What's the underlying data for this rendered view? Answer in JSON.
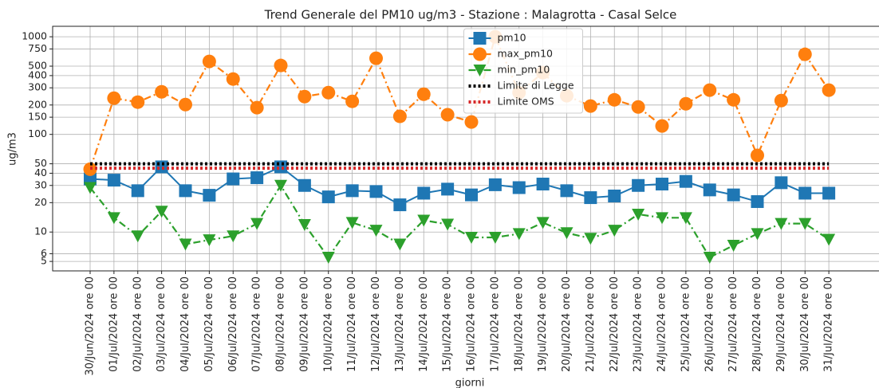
{
  "chart_data": {
    "type": "line",
    "title": "Trend Generale del PM10 ug/m3 - Stazione : Malagrotta - Casal Selce",
    "x_label": "giorni",
    "y_label": "ug/m3",
    "categories": [
      "30/Jun/2024 ore 00",
      "01/Jul/2024 ore 00",
      "02/Jul/2024 ore 00",
      "03/Jul/2024 ore 00",
      "04/Jul/2024 ore 00",
      "05/Jul/2024 ore 00",
      "06/Jul/2024 ore 00",
      "07/Jul/2024 ore 00",
      "08/Jul/2024 ore 00",
      "09/Jul/2024 ore 00",
      "10/Jul/2024 ore 00",
      "11/Jul/2024 ore 00",
      "12/Jul/2024 ore 00",
      "13/Jul/2024 ore 00",
      "14/Jul/2024 ore 00",
      "15/Jul/2024 ore 00",
      "16/Jul/2024 ore 00",
      "17/Jul/2024 ore 00",
      "18/Jul/2024 ore 00",
      "19/Jul/2024 ore 00",
      "20/Jul/2024 ore 00",
      "21/Jul/2024 ore 00",
      "22/Jul/2024 ore 00",
      "23/Jul/2024 ore 00",
      "24/Jul/2024 ore 00",
      "25/Jul/2024 ore 00",
      "26/Jul/2024 ore 00",
      "27/Jul/2024 ore 00",
      "28/Jul/2024 ore 00",
      "29/Jul/2024 ore 00",
      "30/Jul/2024 ore 00",
      "31/Jul/2024 ore 00"
    ],
    "series": [
      {
        "name": "pm10",
        "color": "#1f77b4",
        "linestyle": "solid",
        "marker": "square",
        "values": [
          35,
          34,
          26.5,
          46.5,
          26.5,
          23.8,
          35,
          36,
          46.5,
          30,
          22.9,
          26.5,
          26,
          19,
          25,
          27.5,
          24,
          30.5,
          28.5,
          31,
          26.5,
          22.5,
          23.4,
          30,
          31,
          33,
          27,
          24,
          20.5,
          32,
          25,
          25
        ]
      },
      {
        "name": "max_pm10",
        "color": "#ff7f0e",
        "linestyle": "dashdot",
        "marker": "circle",
        "values": [
          44,
          235,
          214,
          273,
          202,
          559,
          369,
          188,
          508,
          244,
          268,
          218,
          602,
          153,
          258,
          159,
          134,
          1000,
          268,
          429,
          249,
          195,
          226,
          191,
          122,
          206,
          284,
          226,
          61,
          222,
          661,
          284
        ]
      },
      {
        "name": "min_pm10",
        "color": "#2ca02c",
        "linestyle": "dashdot",
        "marker": "triangle_down",
        "values": [
          28.5,
          14,
          9.1,
          16.3,
          7.5,
          8.3,
          9.1,
          12.2,
          30,
          11.9,
          5.5,
          12.5,
          10.4,
          7.5,
          13.2,
          12,
          8.8,
          8.8,
          9.6,
          12.5,
          9.8,
          8.6,
          10.4,
          15.2,
          14,
          14,
          5.5,
          7.3,
          9.6,
          12.2,
          12.2,
          8.4
        ]
      },
      {
        "name": "Limite di Legge",
        "color": "#000000",
        "linestyle": "dotted",
        "marker": "none",
        "values": [
          50,
          50,
          50,
          50,
          50,
          50,
          50,
          50,
          50,
          50,
          50,
          50,
          50,
          50,
          50,
          50,
          50,
          50,
          50,
          50,
          50,
          50,
          50,
          50,
          50,
          50,
          50,
          50,
          50,
          50,
          50,
          50
        ]
      },
      {
        "name": "Limite OMS",
        "color": "#d62728",
        "linestyle": "dotted",
        "marker": "none",
        "values": [
          45,
          45,
          45,
          45,
          45,
          45,
          45,
          45,
          45,
          45,
          45,
          45,
          45,
          45,
          45,
          45,
          45,
          45,
          45,
          45,
          45,
          45,
          45,
          45,
          45,
          45,
          45,
          45,
          45,
          45,
          45,
          45
        ]
      }
    ],
    "ylim": [
      4,
      1280
    ],
    "yscale": "log",
    "yticks": [
      5,
      6,
      10,
      20,
      30,
      40,
      50,
      100,
      150,
      200,
      300,
      400,
      500,
      750,
      1000
    ],
    "grid": true,
    "legend": "upper center"
  }
}
